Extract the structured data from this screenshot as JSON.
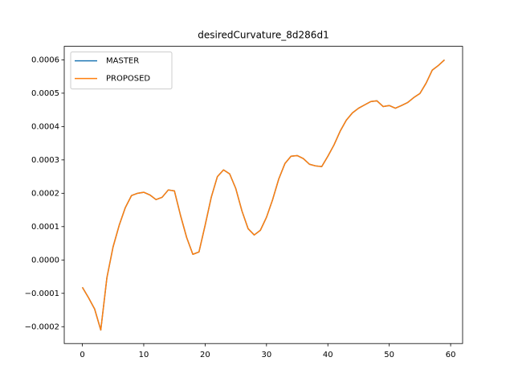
{
  "chart_data": {
    "type": "line",
    "title": "desiredCurvature_8d286d1",
    "x": [
      0,
      1,
      2,
      3,
      4,
      5,
      6,
      7,
      8,
      9,
      10,
      11,
      12,
      13,
      14,
      15,
      16,
      17,
      18,
      19,
      20,
      21,
      22,
      23,
      24,
      25,
      26,
      27,
      28,
      29,
      30,
      31,
      32,
      33,
      34,
      35,
      36,
      37,
      38,
      39,
      40,
      41,
      42,
      43,
      44,
      45,
      46,
      47,
      48,
      49,
      50,
      51,
      52,
      53,
      54,
      55,
      56,
      57,
      58,
      59
    ],
    "series": [
      {
        "name": "MASTER",
        "color": "#1f77b4",
        "values": [
          -8.2e-05,
          -0.000113,
          -0.000147,
          -0.00021,
          -5.3e-05,
          3.9e-05,
          0.000104,
          0.000157,
          0.000193,
          0.0002,
          0.000203,
          0.000195,
          0.000181,
          0.000188,
          0.00021,
          0.000207,
          0.000133,
          6.7e-05,
          1.7e-05,
          2.4e-05,
          0.000104,
          0.000188,
          0.00025,
          0.00027,
          0.000258,
          0.000214,
          0.000147,
          9.4e-05,
          7.5e-05,
          8.9e-05,
          0.000128,
          0.000181,
          0.000243,
          0.000289,
          0.000311,
          0.000313,
          0.000304,
          0.000287,
          0.000282,
          0.00028,
          0.000311,
          0.000345,
          0.000386,
          0.000419,
          0.000441,
          0.000455,
          0.000465,
          0.000475,
          0.000477,
          0.00046,
          0.000463,
          0.000455,
          0.000463,
          0.000472,
          0.000487,
          0.000499,
          0.00053,
          0.000569,
          0.000583,
          0.0006
        ]
      },
      {
        "name": "PROPOSED",
        "color": "#ff7f0e",
        "values": [
          -8.2e-05,
          -0.000113,
          -0.000147,
          -0.00021,
          -5.3e-05,
          3.9e-05,
          0.000104,
          0.000157,
          0.000193,
          0.0002,
          0.000203,
          0.000195,
          0.000181,
          0.000188,
          0.00021,
          0.000207,
          0.000133,
          6.7e-05,
          1.7e-05,
          2.4e-05,
          0.000104,
          0.000188,
          0.00025,
          0.00027,
          0.000258,
          0.000214,
          0.000147,
          9.4e-05,
          7.5e-05,
          8.9e-05,
          0.000128,
          0.000181,
          0.000243,
          0.000289,
          0.000311,
          0.000313,
          0.000304,
          0.000287,
          0.000282,
          0.00028,
          0.000311,
          0.000345,
          0.000386,
          0.000419,
          0.000441,
          0.000455,
          0.000465,
          0.000475,
          0.000477,
          0.00046,
          0.000463,
          0.000455,
          0.000463,
          0.000472,
          0.000487,
          0.000499,
          0.00053,
          0.000569,
          0.000583,
          0.0006
        ]
      }
    ],
    "xlim": [
      -2.95,
      61.95
    ],
    "xticks": [
      0,
      10,
      20,
      30,
      40,
      50,
      60
    ],
    "ylim": [
      -0.0002505,
      0.0006405
    ],
    "yticks": [
      {
        "value": -0.0002,
        "label": "−0.0002"
      },
      {
        "value": -0.0001,
        "label": "−0.0001"
      },
      {
        "value": 0,
        "label": "0.0000"
      },
      {
        "value": 0.0001,
        "label": "0.0001"
      },
      {
        "value": 0.0002,
        "label": "0.0002"
      },
      {
        "value": 0.0003,
        "label": "0.0003"
      },
      {
        "value": 0.0004,
        "label": "0.0004"
      },
      {
        "value": 0.0005,
        "label": "0.0005"
      },
      {
        "value": 0.0006,
        "label": "0.0006"
      }
    ],
    "grid": false,
    "legend": "upper-left"
  }
}
